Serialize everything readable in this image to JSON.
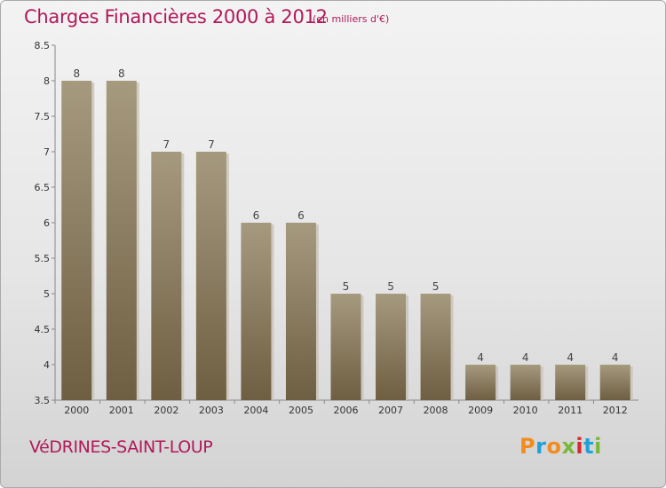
{
  "header": {
    "title": "Charges Financières 2000 à 2012",
    "subtitle": "(en milliers d'€)"
  },
  "footer": {
    "commune": "VéDRINES-SAINT-LOUP",
    "logo": "Proxiti"
  },
  "colors": {
    "title": "#b0195a",
    "bar_top": "#a69a7e",
    "bar_bottom": "#6e5e42",
    "logo_letters": [
      "#f28c1e",
      "#1fa2d8",
      "#f28c1e",
      "#7ab83b",
      "#d8282e",
      "#1fa2d8",
      "#7ab83b"
    ]
  },
  "chart_data": {
    "type": "bar",
    "categories": [
      "2000",
      "2001",
      "2002",
      "2003",
      "2004",
      "2005",
      "2006",
      "2007",
      "2008",
      "2009",
      "2010",
      "2011",
      "2012"
    ],
    "values": [
      8,
      8,
      7,
      7,
      6,
      6,
      5,
      5,
      5,
      4,
      4,
      4,
      4
    ],
    "data_labels": [
      "8",
      "8",
      "7",
      "7",
      "6",
      "6",
      "5",
      "5",
      "5",
      "4",
      "4",
      "4",
      "4"
    ],
    "title": "Charges Financières 2000 à 2012",
    "xlabel": "",
    "ylabel": "",
    "ylim": [
      3.5,
      8.5
    ],
    "yticks": [
      "3.5",
      "4",
      "4.5",
      "5",
      "5.5",
      "6",
      "6.5",
      "7",
      "7.5",
      "8",
      "8.5"
    ],
    "grid": false,
    "legend": "none"
  }
}
